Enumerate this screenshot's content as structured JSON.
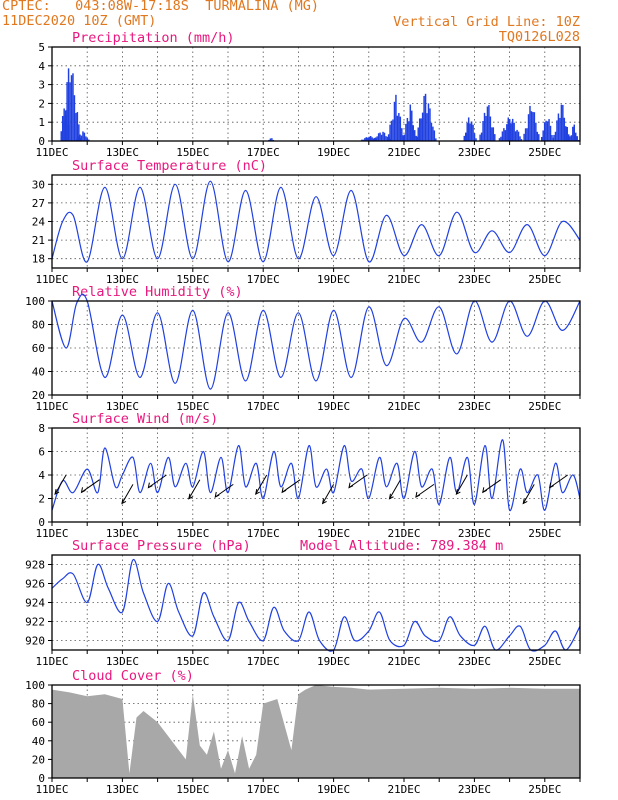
{
  "header": {
    "line1_left": "CPTEC:   043:08W-17:18S  TURMALINA (MG)",
    "line2_left": "11DEC2020 10Z (GMT)",
    "line1_right": "Vertical Grid Line: 10Z",
    "line2_right": "TQ0126L028"
  },
  "colors": {
    "header": "#e07820",
    "title": "#e8187e",
    "line": "#2040e0",
    "bar": "#2040e0",
    "cloud": "#a8a8a8"
  },
  "chart_data": [
    {
      "id": "precip",
      "type": "bar",
      "title": "Precipitation (mm/h)",
      "xticks": [
        "11DEC",
        "13DEC",
        "15DEC",
        "17DEC",
        "19DEC",
        "21DEC",
        "23DEC",
        "25DEC"
      ],
      "x_days": [
        11,
        26
      ],
      "ylim": [
        0,
        5
      ],
      "yticks": [
        0,
        1,
        2,
        3,
        4,
        5
      ],
      "events": [
        {
          "day": 11.5,
          "width": 0.3,
          "peak": 4.8
        },
        {
          "day": 11.38,
          "width": 0.1,
          "peak": 2.6
        },
        {
          "day": 11.85,
          "width": 0.2,
          "peak": 0.6
        },
        {
          "day": 17.2,
          "width": 0.1,
          "peak": 0.2
        },
        {
          "day": 20.0,
          "width": 0.3,
          "peak": 0.3
        },
        {
          "day": 20.35,
          "width": 0.3,
          "peak": 0.6
        },
        {
          "day": 20.75,
          "width": 0.25,
          "peak": 2.6
        },
        {
          "day": 21.15,
          "width": 0.2,
          "peak": 2.2
        },
        {
          "day": 21.6,
          "width": 0.3,
          "peak": 2.9
        },
        {
          "day": 22.85,
          "width": 0.2,
          "peak": 1.6
        },
        {
          "day": 23.35,
          "width": 0.25,
          "peak": 2.3
        },
        {
          "day": 24.0,
          "width": 0.35,
          "peak": 1.5
        },
        {
          "day": 24.6,
          "width": 0.25,
          "peak": 2.3
        },
        {
          "day": 25.05,
          "width": 0.2,
          "peak": 1.6
        },
        {
          "day": 25.45,
          "width": 0.25,
          "peak": 2.3
        },
        {
          "day": 25.8,
          "width": 0.15,
          "peak": 1.0
        }
      ]
    },
    {
      "id": "temp",
      "type": "line",
      "title": "Surface Temperature (nC)",
      "xticks": [
        "11DEC",
        "13DEC",
        "15DEC",
        "17DEC",
        "19DEC",
        "21DEC",
        "23DEC",
        "25DEC"
      ],
      "x_days": [
        11,
        26
      ],
      "ylim": [
        16.5,
        31.5
      ],
      "yticks": [
        18,
        21,
        24,
        27,
        30
      ],
      "x": [
        11.0,
        11.3,
        11.6,
        12.0,
        12.5,
        13.0,
        13.5,
        14.0,
        14.5,
        15.0,
        15.5,
        16.0,
        16.5,
        17.0,
        17.5,
        18.0,
        18.5,
        19.0,
        19.5,
        20.0,
        20.5,
        21.0,
        21.5,
        22.0,
        22.5,
        23.0,
        23.5,
        24.0,
        24.5,
        25.0,
        25.5,
        26.0
      ],
      "y": [
        18.0,
        24.0,
        25.0,
        17.5,
        29.5,
        18.0,
        29.5,
        18.0,
        30.0,
        18.0,
        30.5,
        17.5,
        29.0,
        17.5,
        29.5,
        18.0,
        28.0,
        18.5,
        29.0,
        17.5,
        25.0,
        18.5,
        23.5,
        18.5,
        25.5,
        19.0,
        22.5,
        19.0,
        23.5,
        18.5,
        24.0,
        21.0
      ]
    },
    {
      "id": "rh",
      "type": "line",
      "title": "Relative Humidity (%)",
      "xticks": [
        "11DEC",
        "13DEC",
        "15DEC",
        "17DEC",
        "19DEC",
        "21DEC",
        "23DEC",
        "25DEC"
      ],
      "x_days": [
        11,
        26
      ],
      "ylim": [
        20,
        100
      ],
      "yticks": [
        20,
        40,
        60,
        80,
        100
      ],
      "x": [
        11.0,
        11.4,
        11.7,
        12.0,
        12.5,
        13.0,
        13.5,
        14.0,
        14.5,
        15.0,
        15.5,
        16.0,
        16.5,
        17.0,
        17.5,
        18.0,
        18.5,
        19.0,
        19.5,
        20.0,
        20.5,
        21.0,
        21.5,
        22.0,
        22.5,
        23.0,
        23.5,
        24.0,
        24.5,
        25.0,
        25.5,
        26.0
      ],
      "y": [
        100,
        60,
        98,
        100,
        35,
        88,
        35,
        90,
        30,
        92,
        25,
        90,
        32,
        92,
        35,
        90,
        32,
        92,
        35,
        95,
        45,
        85,
        65,
        95,
        55,
        100,
        65,
        100,
        70,
        100,
        75,
        100
      ]
    },
    {
      "id": "wind",
      "type": "line",
      "title": "Surface Wind (m/s)",
      "xticks": [
        "11DEC",
        "13DEC",
        "15DEC",
        "17DEC",
        "19DEC",
        "21DEC",
        "23DEC",
        "25DEC"
      ],
      "x_days": [
        11,
        26
      ],
      "ylim": [
        0,
        8
      ],
      "yticks": [
        0,
        2,
        4,
        6,
        8
      ],
      "x": [
        11.0,
        11.3,
        11.6,
        12.0,
        12.3,
        12.5,
        12.8,
        13.0,
        13.3,
        13.5,
        13.8,
        14.0,
        14.3,
        14.5,
        14.8,
        15.0,
        15.3,
        15.5,
        15.8,
        16.0,
        16.3,
        16.5,
        16.8,
        17.0,
        17.3,
        17.5,
        17.8,
        18.0,
        18.3,
        18.5,
        18.8,
        19.0,
        19.3,
        19.5,
        19.8,
        20.0,
        20.3,
        20.5,
        20.8,
        21.0,
        21.3,
        21.5,
        21.8,
        22.0,
        22.3,
        22.5,
        22.8,
        23.0,
        23.3,
        23.5,
        23.8,
        24.0,
        24.3,
        24.5,
        24.8,
        25.0,
        25.3,
        25.5,
        25.8,
        26.0
      ],
      "y": [
        1.0,
        3.5,
        2.5,
        4.5,
        2.5,
        6.3,
        3.0,
        4.0,
        5.5,
        2.5,
        5.0,
        2.5,
        5.5,
        3.0,
        5.0,
        3.0,
        6.0,
        2.5,
        5.5,
        2.5,
        6.5,
        3.0,
        5.0,
        2.0,
        6.0,
        3.0,
        5.0,
        2.0,
        6.5,
        3.0,
        4.5,
        2.5,
        6.5,
        3.5,
        4.5,
        2.0,
        5.5,
        3.0,
        5.0,
        2.0,
        6.0,
        3.0,
        4.5,
        1.5,
        5.5,
        2.5,
        5.5,
        1.5,
        6.5,
        2.0,
        7.0,
        1.0,
        4.5,
        2.5,
        4.0,
        1.0,
        5.0,
        2.5,
        4.0,
        2.0
      ]
    },
    {
      "id": "pres",
      "type": "line",
      "title": "Surface Pressure (hPa)",
      "subtitle": "Model Altitude: 789.384 m",
      "xticks": [
        "11DEC",
        "13DEC",
        "15DEC",
        "17DEC",
        "19DEC",
        "21DEC",
        "23DEC",
        "25DEC"
      ],
      "x_days": [
        11,
        26
      ],
      "ylim": [
        919,
        929
      ],
      "yticks": [
        920,
        922,
        924,
        926,
        928
      ],
      "x": [
        11.0,
        11.3,
        11.6,
        12.0,
        12.3,
        12.6,
        13.0,
        13.3,
        13.6,
        14.0,
        14.3,
        14.6,
        15.0,
        15.3,
        15.6,
        16.0,
        16.3,
        16.6,
        17.0,
        17.3,
        17.6,
        18.0,
        18.3,
        18.6,
        19.0,
        19.3,
        19.6,
        20.0,
        20.3,
        20.6,
        21.0,
        21.3,
        21.6,
        22.0,
        22.3,
        22.6,
        23.0,
        23.3,
        23.6,
        24.0,
        24.3,
        24.6,
        25.0,
        25.3,
        25.6,
        26.0
      ],
      "y": [
        925.5,
        926.5,
        927.0,
        924.0,
        928.0,
        925.5,
        923.0,
        928.5,
        925.0,
        922.0,
        926.0,
        923.0,
        920.5,
        925.0,
        922.5,
        920.0,
        924.0,
        922.0,
        920.0,
        923.5,
        921.0,
        920.0,
        923.0,
        920.0,
        919.0,
        922.5,
        920.0,
        921.0,
        923.0,
        920.0,
        919.5,
        922.0,
        920.5,
        920.0,
        922.5,
        920.5,
        919.5,
        921.5,
        919.0,
        920.5,
        921.5,
        919.0,
        919.5,
        921.0,
        919.0,
        921.5
      ]
    },
    {
      "id": "cloud",
      "type": "area",
      "title": "Cloud Cover (%)",
      "xticks": [
        "11DEC",
        "13DEC",
        "15DEC",
        "17DEC",
        "19DEC",
        "21DEC",
        "23DEC",
        "25DEC"
      ],
      "x_days": [
        11,
        26
      ],
      "ylim": [
        0,
        100
      ],
      "yticks": [
        0,
        20,
        40,
        60,
        80,
        100
      ],
      "x": [
        11.0,
        11.5,
        12.0,
        12.5,
        13.0,
        13.2,
        13.4,
        13.6,
        14.0,
        14.4,
        14.8,
        15.0,
        15.2,
        15.4,
        15.6,
        15.8,
        16.0,
        16.2,
        16.4,
        16.6,
        16.8,
        17.0,
        17.4,
        17.8,
        18.0,
        18.2,
        18.5,
        19.0,
        19.5,
        20.0,
        21.0,
        22.0,
        23.0,
        24.0,
        25.0,
        26.0
      ],
      "y": [
        95,
        92,
        88,
        90,
        85,
        5,
        65,
        72,
        60,
        40,
        20,
        90,
        35,
        25,
        50,
        10,
        30,
        5,
        45,
        10,
        25,
        80,
        85,
        30,
        90,
        95,
        100,
        98,
        97,
        95,
        96,
        97,
        96,
        97,
        96,
        96
      ]
    }
  ]
}
